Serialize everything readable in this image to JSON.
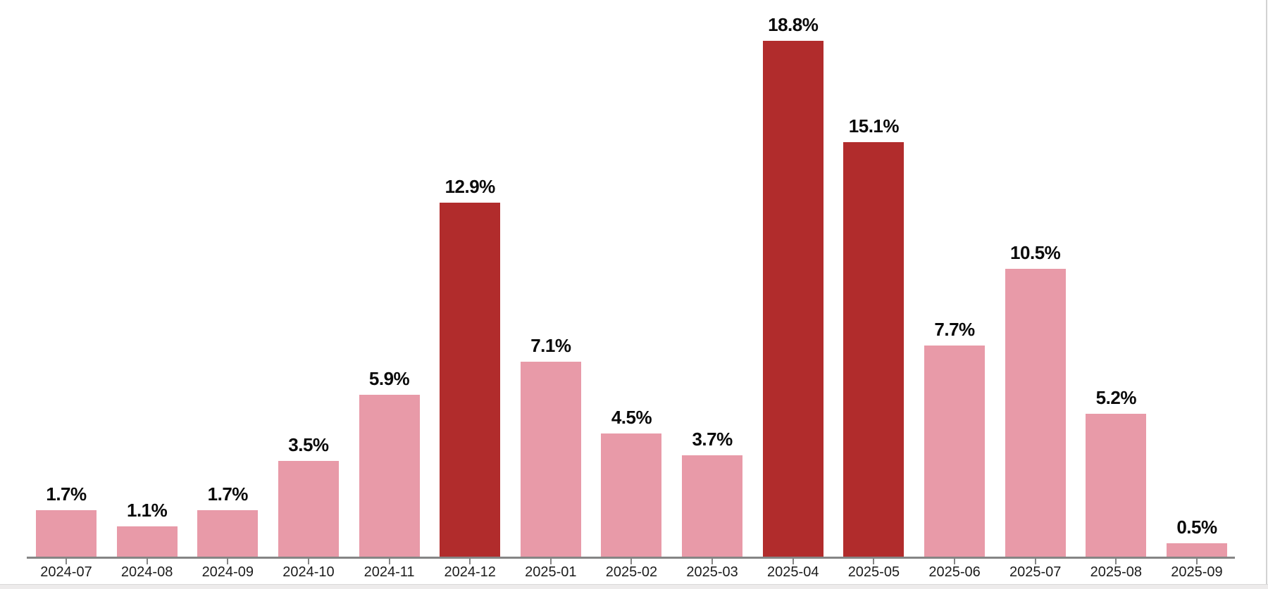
{
  "chart_data": {
    "type": "bar",
    "title": "",
    "xlabel": "",
    "ylabel": "",
    "categories": [
      "2024-07",
      "2024-08",
      "2024-09",
      "2024-10",
      "2024-11",
      "2024-12",
      "2025-01",
      "2025-02",
      "2025-03",
      "2025-04",
      "2025-05",
      "2025-06",
      "2025-07",
      "2025-08",
      "2025-09"
    ],
    "values": [
      1.7,
      1.1,
      1.7,
      3.5,
      5.9,
      12.9,
      7.1,
      4.5,
      3.7,
      18.8,
      15.1,
      7.7,
      10.5,
      5.2,
      0.5
    ],
    "value_labels": [
      "1.7%",
      "1.1%",
      "1.7%",
      "3.5%",
      "5.9%",
      "12.9%",
      "7.1%",
      "4.5%",
      "3.7%",
      "18.8%",
      "15.1%",
      "7.7%",
      "10.5%",
      "5.2%",
      "0.5%"
    ],
    "highlighted_categories": [
      "2024-12",
      "2025-04",
      "2025-05"
    ],
    "ylim": [
      0,
      20
    ],
    "grid": false,
    "legend": false,
    "value_labels_shown": true,
    "colors": {
      "bar": "#e89aa8",
      "bar_highlight": "#b12c2c",
      "axis": "#858585",
      "value_label": "#0a0a0a",
      "tick_label": "#1c1c1c"
    }
  },
  "page": {
    "background": "#ffffff",
    "bottom_strip": "#edebeb",
    "right_border": "#d2d2d2"
  }
}
